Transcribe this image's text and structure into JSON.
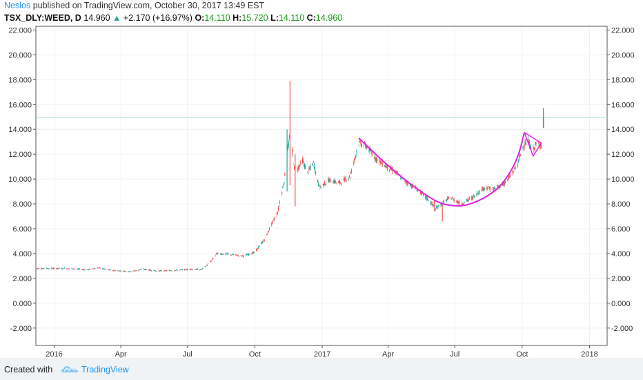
{
  "header": {
    "author": "Neslos",
    "published": "published on TradingView.com, October 30, 2017 13:49 EST"
  },
  "legend": {
    "symbol": "TSX_DLY:WEED, D",
    "last": "14.960",
    "change": "+2.170 (+16.97%)",
    "o_label": "O:",
    "o": "14.110",
    "h_label": "H:",
    "h": "15.720",
    "l_label": "L:",
    "l": "14.110",
    "c_label": "C:",
    "c": "14.960"
  },
  "footer": {
    "created_with": "Created with",
    "brand": "TradingView"
  },
  "colors": {
    "up": "#26a69a",
    "down": "#ef5350",
    "pattern": "#e020e0",
    "price_line": "#a8dcd5",
    "grid": "#eef1f4"
  },
  "chart_data": {
    "type": "candlestick",
    "y_ticks": [
      "22.000",
      "20.000",
      "18.000",
      "16.000",
      "14.000",
      "12.000",
      "10.000",
      "8.000",
      "6.000",
      "4.000",
      "2.000",
      "0.000",
      "-2.000"
    ],
    "y_tick_values": [
      22,
      20,
      18,
      16,
      14,
      12,
      10,
      8,
      6,
      4,
      2,
      0,
      -2
    ],
    "ylim": [
      -3.4,
      22.3
    ],
    "x_ticks": [
      "2016",
      "Apr",
      "Jul",
      "Oct",
      "2017",
      "Apr",
      "Jul",
      "Oct",
      "2018"
    ],
    "x_tick_values": [
      "2016-01-01",
      "2016-04-01",
      "2016-07-01",
      "2016-10-01",
      "2017-01-01",
      "2017-04-01",
      "2017-07-01",
      "2017-10-01",
      "2018-01-01"
    ],
    "xlim": [
      "2015-12-07",
      "2018-01-25"
    ],
    "current_price": 14.96,
    "price_path": [
      [
        "2015-12-07",
        2.8
      ],
      [
        "2016-01-15",
        2.8
      ],
      [
        "2016-02-15",
        2.7
      ],
      [
        "2016-03-01",
        2.85
      ],
      [
        "2016-03-20",
        2.65
      ],
      [
        "2016-04-15",
        2.55
      ],
      [
        "2016-05-01",
        2.75
      ],
      [
        "2016-05-20",
        2.6
      ],
      [
        "2016-06-15",
        2.65
      ],
      [
        "2016-07-05",
        2.75
      ],
      [
        "2016-07-20",
        2.7
      ],
      [
        "2016-08-01",
        3.3
      ],
      [
        "2016-08-10",
        4.0
      ],
      [
        "2016-08-25",
        3.95
      ],
      [
        "2016-09-15",
        3.8
      ],
      [
        "2016-10-01",
        4.1
      ],
      [
        "2016-10-15",
        5.2
      ],
      [
        "2016-10-25",
        6.5
      ],
      [
        "2016-11-01",
        7.3
      ],
      [
        "2016-11-10",
        9.8
      ],
      [
        "2016-11-15",
        12.5
      ],
      [
        "2016-11-18",
        13.5
      ],
      [
        "2016-11-25",
        10.5
      ],
      [
        "2016-12-05",
        11.5
      ],
      [
        "2016-12-12",
        10.5
      ],
      [
        "2016-12-20",
        11.3
      ],
      [
        "2016-12-28",
        9.3
      ],
      [
        "2017-01-10",
        9.9
      ],
      [
        "2017-01-25",
        9.7
      ],
      [
        "2017-02-08",
        10.2
      ],
      [
        "2017-02-20",
        12.9
      ],
      [
        "2017-03-01",
        12.7
      ],
      [
        "2017-03-15",
        11.7
      ],
      [
        "2017-03-25",
        11.2
      ],
      [
        "2017-04-10",
        10.6
      ],
      [
        "2017-04-25",
        9.8
      ],
      [
        "2017-05-10",
        9.2
      ],
      [
        "2017-05-25",
        8.4
      ],
      [
        "2017-06-05",
        7.6
      ],
      [
        "2017-06-15",
        8.1
      ],
      [
        "2017-06-25",
        8.5
      ],
      [
        "2017-07-10",
        8.0
      ],
      [
        "2017-07-25",
        8.5
      ],
      [
        "2017-08-10",
        9.3
      ],
      [
        "2017-08-25",
        9.2
      ],
      [
        "2017-09-10",
        9.8
      ],
      [
        "2017-09-25",
        11.2
      ],
      [
        "2017-10-02",
        12.6
      ],
      [
        "2017-10-08",
        13.1
      ],
      [
        "2017-10-15",
        12.3
      ],
      [
        "2017-10-20",
        12.8
      ],
      [
        "2017-10-27",
        12.79
      ]
    ],
    "spikes": [
      {
        "date": "2016-11-18",
        "low": 9.5,
        "high": 17.9,
        "dir": "down"
      },
      {
        "date": "2016-11-14",
        "low": 9.0,
        "high": 14.0,
        "dir": "up"
      },
      {
        "date": "2016-11-25",
        "low": 7.8,
        "high": 12.0,
        "dir": "down"
      },
      {
        "date": "2017-06-03",
        "low": 7.4,
        "high": 8.3,
        "dir": "down"
      },
      {
        "date": "2017-06-14",
        "low": 6.6,
        "high": 8.0,
        "dir": "down"
      }
    ],
    "last_bar": {
      "date": "2017-10-30",
      "open": 14.11,
      "high": 15.72,
      "low": 14.11,
      "close": 14.96
    },
    "pattern_cup": [
      [
        "2017-02-20",
        13.3
      ],
      [
        "2017-03-20",
        11.7
      ],
      [
        "2017-04-20",
        10.1
      ],
      [
        "2017-05-20",
        8.8
      ],
      [
        "2017-06-10",
        8.05
      ],
      [
        "2017-06-30",
        7.8
      ],
      [
        "2017-07-20",
        7.9
      ],
      [
        "2017-08-15",
        8.6
      ],
      [
        "2017-09-05",
        9.6
      ],
      [
        "2017-09-25",
        11.6
      ],
      [
        "2017-10-04",
        13.75
      ]
    ],
    "pattern_handle": [
      [
        "2017-10-04",
        13.75
      ],
      [
        "2017-10-16",
        11.85
      ],
      [
        "2017-10-27",
        12.9
      ],
      [
        "2017-10-04",
        13.75
      ]
    ]
  }
}
